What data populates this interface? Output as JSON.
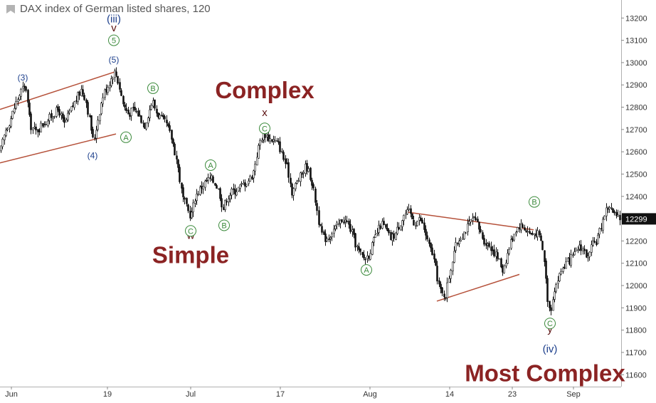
{
  "title": "DAX index of German listed shares, 120",
  "colors": {
    "candle": "#111111",
    "trendline": "#b5513a",
    "annotation_big": "#8b2323",
    "wave_blue": "#1c3f8c",
    "wave_circle": "#3b8a3b",
    "last_price_bg": "#111111"
  },
  "chart_data": {
    "type": "candlestick",
    "ylim": [
      11550,
      13300
    ],
    "y_ticks": [
      11600,
      11700,
      11800,
      11900,
      12000,
      12100,
      12200,
      12300,
      12400,
      12500,
      12600,
      12700,
      12800,
      12900,
      13000,
      13100,
      13200
    ],
    "x_ticks": [
      "Jun",
      "19",
      "Jul",
      "17",
      "Aug",
      "14",
      "23",
      "Sep"
    ],
    "last_price": "12299",
    "path": [
      [
        0,
        12600
      ],
      [
        8,
        12700
      ],
      [
        15,
        12750
      ],
      [
        22,
        12820
      ],
      [
        30,
        12880
      ],
      [
        36,
        12890
      ],
      [
        42,
        12720
      ],
      [
        50,
        12690
      ],
      [
        58,
        12720
      ],
      [
        66,
        12740
      ],
      [
        74,
        12770
      ],
      [
        82,
        12790
      ],
      [
        90,
        12720
      ],
      [
        98,
        12780
      ],
      [
        106,
        12830
      ],
      [
        114,
        12880
      ],
      [
        120,
        12840
      ],
      [
        127,
        12720
      ],
      [
        131,
        12640
      ],
      [
        138,
        12760
      ],
      [
        145,
        12860
      ],
      [
        152,
        12900
      ],
      [
        159,
        12950
      ],
      [
        162,
        12960
      ],
      [
        167,
        12900
      ],
      [
        173,
        12810
      ],
      [
        180,
        12770
      ],
      [
        188,
        12790
      ],
      [
        196,
        12760
      ],
      [
        203,
        12720
      ],
      [
        209,
        12780
      ],
      [
        214,
        12830
      ],
      [
        219,
        12780
      ],
      [
        226,
        12750
      ],
      [
        234,
        12720
      ],
      [
        242,
        12650
      ],
      [
        249,
        12550
      ],
      [
        256,
        12400
      ],
      [
        263,
        12340
      ],
      [
        268,
        12310
      ],
      [
        274,
        12400
      ],
      [
        282,
        12440
      ],
      [
        290,
        12470
      ],
      [
        296,
        12480
      ],
      [
        302,
        12460
      ],
      [
        308,
        12420
      ],
      [
        313,
        12340
      ],
      [
        318,
        12390
      ],
      [
        325,
        12420
      ],
      [
        332,
        12430
      ],
      [
        340,
        12450
      ],
      [
        348,
        12470
      ],
      [
        355,
        12500
      ],
      [
        360,
        12580
      ],
      [
        366,
        12660
      ],
      [
        372,
        12680
      ],
      [
        378,
        12660
      ],
      [
        385,
        12650
      ],
      [
        392,
        12630
      ],
      [
        398,
        12570
      ],
      [
        404,
        12520
      ],
      [
        410,
        12420
      ],
      [
        416,
        12460
      ],
      [
        422,
        12490
      ],
      [
        430,
        12540
      ],
      [
        437,
        12480
      ],
      [
        443,
        12380
      ],
      [
        449,
        12260
      ],
      [
        455,
        12210
      ],
      [
        462,
        12220
      ],
      [
        468,
        12250
      ],
      [
        475,
        12270
      ],
      [
        481,
        12300
      ],
      [
        488,
        12280
      ],
      [
        494,
        12240
      ],
      [
        500,
        12180
      ],
      [
        506,
        12140
      ],
      [
        512,
        12120
      ],
      [
        518,
        12140
      ],
      [
        524,
        12190
      ],
      [
        530,
        12240
      ],
      [
        536,
        12280
      ],
      [
        542,
        12250
      ],
      [
        548,
        12210
      ],
      [
        555,
        12230
      ],
      [
        562,
        12280
      ],
      [
        568,
        12320
      ],
      [
        575,
        12330
      ],
      [
        582,
        12280
      ],
      [
        590,
        12300
      ],
      [
        596,
        12250
      ],
      [
        602,
        12180
      ],
      [
        608,
        12140
      ],
      [
        614,
        12040
      ],
      [
        620,
        11960
      ],
      [
        626,
        11960
      ],
      [
        632,
        12060
      ],
      [
        638,
        12160
      ],
      [
        645,
        12210
      ],
      [
        652,
        12240
      ],
      [
        658,
        12270
      ],
      [
        664,
        12300
      ],
      [
        670,
        12280
      ],
      [
        676,
        12230
      ],
      [
        682,
        12190
      ],
      [
        688,
        12180
      ],
      [
        694,
        12150
      ],
      [
        700,
        12120
      ],
      [
        706,
        12070
      ],
      [
        712,
        12130
      ],
      [
        718,
        12200
      ],
      [
        724,
        12250
      ],
      [
        730,
        12270
      ],
      [
        736,
        12260
      ],
      [
        742,
        12240
      ],
      [
        748,
        12230
      ],
      [
        754,
        12240
      ],
      [
        760,
        12200
      ],
      [
        765,
        12110
      ],
      [
        769,
        11950
      ],
      [
        773,
        11880
      ],
      [
        778,
        11980
      ],
      [
        784,
        12030
      ],
      [
        790,
        12080
      ],
      [
        796,
        12100
      ],
      [
        802,
        12120
      ],
      [
        808,
        12140
      ],
      [
        814,
        12180
      ],
      [
        820,
        12160
      ],
      [
        826,
        12120
      ],
      [
        832,
        12180
      ],
      [
        838,
        12200
      ],
      [
        844,
        12260
      ],
      [
        850,
        12330
      ],
      [
        856,
        12360
      ],
      [
        862,
        12320
      ],
      [
        868,
        12300
      ],
      [
        873,
        12299
      ]
    ],
    "trendlines": [
      {
        "from": [
          0,
          12790
        ],
        "to": [
          163,
          12960
        ]
      },
      {
        "from": [
          0,
          12550
        ],
        "to": [
          163,
          12680
        ]
      },
      {
        "from": [
          571,
          12330
        ],
        "to": [
          750,
          12250
        ]
      },
      {
        "from": [
          614,
          11930
        ],
        "to": [
          730,
          12050
        ]
      }
    ],
    "annotations": {
      "big": [
        {
          "text": "Complex",
          "x": 372,
          "y": 12840
        },
        {
          "text": "Simple",
          "x": 268,
          "y": 12100
        },
        {
          "text": "Most Complex",
          "x": 766,
          "y": 11570
        }
      ],
      "wave_blue": [
        {
          "text": "(3)",
          "x": 32,
          "y": 12920
        },
        {
          "text": "(5)",
          "x": 160,
          "y": 13000
        },
        {
          "text": "(4)",
          "x": 130,
          "y": 12570
        }
      ],
      "wave_blue_large": [
        {
          "text": "(iii)",
          "x": 160,
          "y": 13180
        },
        {
          "text": "(iv)",
          "x": 773,
          "y": 11700
        }
      ],
      "wave_dark": [
        {
          "text": "v",
          "x": 160,
          "y": 13140
        },
        {
          "text": "w",
          "x": 268,
          "y": 12210
        },
        {
          "text": "x",
          "x": 372,
          "y": 12760
        },
        {
          "text": "y",
          "x": 773,
          "y": 11790
        }
      ],
      "circled": [
        {
          "text": "5",
          "x": 160,
          "y": 13100
        },
        {
          "text": "A",
          "x": 177,
          "y": 12665
        },
        {
          "text": "B",
          "x": 215,
          "y": 12885
        },
        {
          "text": "C",
          "x": 268,
          "y": 12245
        },
        {
          "text": "A",
          "x": 296,
          "y": 12540
        },
        {
          "text": "B",
          "x": 315,
          "y": 12270
        },
        {
          "text": "C",
          "x": 372,
          "y": 12705
        },
        {
          "text": "A",
          "x": 515,
          "y": 12070
        },
        {
          "text": "B",
          "x": 751,
          "y": 12375
        },
        {
          "text": "C",
          "x": 773,
          "y": 11830
        }
      ]
    }
  }
}
